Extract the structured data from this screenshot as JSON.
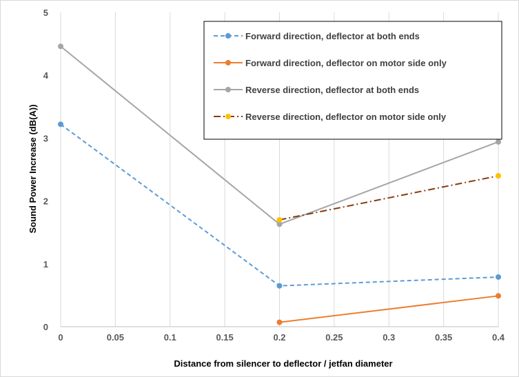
{
  "chart_data": {
    "type": "line",
    "title": "",
    "xlabel": "Distance from silencer to deflector / jetfan diameter",
    "ylabel": "Sound Power Increase (dB(A))",
    "xlim": [
      0,
      0.4
    ],
    "ylim": [
      0,
      5
    ],
    "x_ticks": [
      "0",
      "0.05",
      "0.1",
      "0.15",
      "0.2",
      "0.25",
      "0.3",
      "0.35",
      "0.4"
    ],
    "y_ticks": [
      "0",
      "1",
      "2",
      "3",
      "4",
      "5"
    ],
    "grid": "vertical",
    "legend_position": "top-right",
    "series": [
      {
        "name": "Forward direction, deflector at both ends",
        "color": "#5B9BD5",
        "line_color": "#5B9BD5",
        "dash": "dashed",
        "points": [
          [
            0,
            3.22
          ],
          [
            0.2,
            0.65
          ],
          [
            0.4,
            0.79
          ]
        ]
      },
      {
        "name": "Forward direction, deflector on motor side only",
        "color": "#ED7D31",
        "line_color": "#ED7D31",
        "dash": "solid",
        "points": [
          [
            0.2,
            0.07
          ],
          [
            0.4,
            0.49
          ]
        ]
      },
      {
        "name": "Reverse direction, deflector at both ends",
        "color": "#A5A5A5",
        "line_color": "#A5A5A5",
        "dash": "solid",
        "points": [
          [
            0,
            4.46
          ],
          [
            0.2,
            1.63
          ],
          [
            0.4,
            2.94
          ]
        ]
      },
      {
        "name": "Reverse direction, deflector on motor side only",
        "color": "#FFC000",
        "line_color": "#843C0C",
        "dash": "dashdot",
        "points": [
          [
            0.2,
            1.7
          ],
          [
            0.4,
            2.4
          ]
        ]
      }
    ]
  }
}
